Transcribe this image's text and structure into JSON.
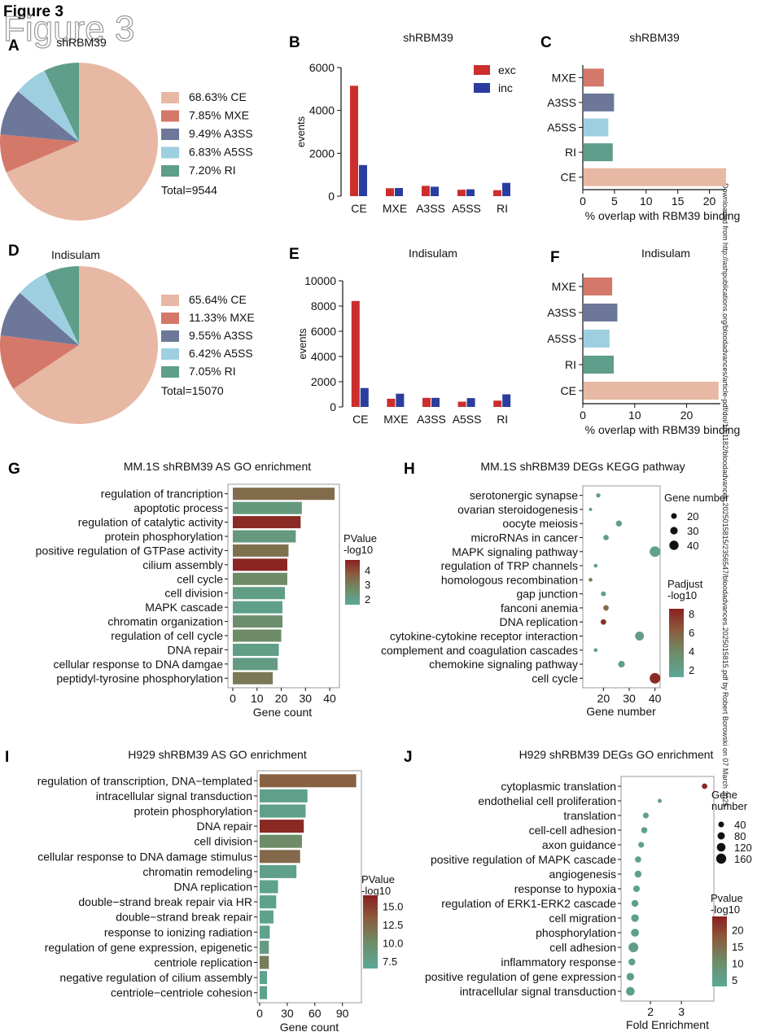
{
  "header": {
    "figure_label": "Figure 3",
    "watermark_title": "Figure 3",
    "side_note": "Downloaded from http://ashpublications.org/bloodadvances/article-pdf/doi/10.1182/bloodadvances.2025015815/2356547/bloodadvances.2025015815.pdf by Robert Borowski on 07 March 2025"
  },
  "palette": {
    "CE": "#e7b8a3",
    "MXE": "#d4786a",
    "A3SS": "#6d7799",
    "A5SS": "#9ecfe0",
    "RI": "#5e9e8a",
    "exc": "#cc2e2e",
    "inc": "#2a3d9e",
    "gradient": [
      "#5aa898",
      "#6e8c68",
      "#8b5a3c",
      "#8a1f1f"
    ]
  },
  "chart_data": [
    {
      "panel": "A",
      "type": "pie",
      "title": "shRBM39",
      "categories": [
        "CE",
        "MXE",
        "A3SS",
        "A5SS",
        "RI"
      ],
      "values": [
        68.63,
        7.85,
        9.49,
        6.83,
        7.2
      ],
      "legend": [
        "68.63%  CE",
        "7.85%  MXE",
        "9.49%  A3SS",
        "6.83%  A5SS",
        "7.20%  RI"
      ],
      "total_label": "Total=9544"
    },
    {
      "panel": "B",
      "type": "bar",
      "title": "shRBM39",
      "categories": [
        "CE",
        "MXE",
        "A3SS",
        "A5SS",
        "RI"
      ],
      "series": [
        {
          "name": "exc",
          "values": [
            5150,
            370,
            480,
            300,
            280
          ]
        },
        {
          "name": "inc",
          "values": [
            1450,
            380,
            440,
            320,
            620
          ]
        }
      ],
      "ylabel": "events",
      "ylim": [
        0,
        6000
      ],
      "yticks": [
        "0",
        "2000",
        "4000",
        "6000"
      ],
      "legend_position": "top-right"
    },
    {
      "panel": "C",
      "type": "bar",
      "orientation": "horizontal",
      "title": "shRBM39",
      "categories": [
        "MXE",
        "A3SS",
        "A5SS",
        "RI",
        "CE"
      ],
      "values": [
        3.2,
        4.8,
        3.9,
        4.6,
        22.5
      ],
      "xlabel": "% overlap with RBM39 binding",
      "xlim": [
        0,
        22.5
      ],
      "xticks": [
        "0",
        "5",
        "10",
        "15",
        "20"
      ]
    },
    {
      "panel": "D",
      "type": "pie",
      "title": "Indisulam",
      "categories": [
        "CE",
        "MXE",
        "A3SS",
        "A5SS",
        "RI"
      ],
      "values": [
        65.64,
        11.33,
        9.55,
        6.42,
        7.05
      ],
      "legend": [
        "65.64%  CE",
        "11.33%  MXE",
        "9.55%  A3SS",
        "6.42%  A5SS",
        "7.05%  RI"
      ],
      "total_label": "Total=15070"
    },
    {
      "panel": "E",
      "type": "bar",
      "title": "Indisulam",
      "categories": [
        "CE",
        "MXE",
        "A3SS",
        "A5SS",
        "RI"
      ],
      "series": [
        {
          "name": "exc",
          "values": [
            8400,
            650,
            720,
            420,
            500
          ]
        },
        {
          "name": "inc",
          "values": [
            1500,
            1050,
            720,
            700,
            1000
          ]
        }
      ],
      "ylabel": "events",
      "ylim": [
        0,
        10000
      ],
      "yticks": [
        "0",
        "2000",
        "4000",
        "6000",
        "8000",
        "10000"
      ]
    },
    {
      "panel": "F",
      "type": "bar",
      "orientation": "horizontal",
      "title": "Indisulam",
      "categories": [
        "MXE",
        "A3SS",
        "A5SS",
        "RI",
        "CE"
      ],
      "values": [
        5.5,
        6.5,
        5.0,
        5.8,
        26.0
      ],
      "xlabel": "% overlap with RBM39 binding",
      "xlim": [
        0,
        26.5
      ],
      "xticks": [
        "0",
        "10",
        "20"
      ]
    },
    {
      "panel": "G",
      "type": "bar",
      "orientation": "horizontal",
      "title": "MM.1S shRBM39 AS GO enrichment",
      "categories": [
        "regulation of trancription",
        "apoptotic process",
        "regulation of catalytic activity",
        "protein phosphorylation",
        "positive regulation of GTPase activity",
        "cilium assembly",
        "cell cycle",
        "cell division",
        "MAPK cascade",
        "chromatin organization",
        "regulation of cell cycle",
        "DNA repair",
        "cellular response to DNA damgae",
        "peptidyl-tyrosine phosphorylation"
      ],
      "values": [
        42,
        28.5,
        28,
        26,
        23,
        22.5,
        22.5,
        21.5,
        20.5,
        20.5,
        20,
        19,
        18.5,
        16.5
      ],
      "color_values": [
        3.4,
        2.2,
        4.5,
        2.2,
        3.3,
        4.6,
        2.7,
        2.0,
        1.9,
        2.6,
        2.7,
        2.0,
        2.1,
        3.1
      ],
      "xlabel": "Gene count",
      "xlim": [
        0,
        43
      ],
      "xticks": [
        "0",
        "10",
        "20",
        "30",
        "40"
      ],
      "colorbar": {
        "title": [
          "PValue",
          "-log10"
        ],
        "ticks": [
          "2",
          "3",
          "4"
        ],
        "range": [
          1.6,
          4.7
        ]
      }
    },
    {
      "panel": "H",
      "type": "scatter",
      "title": "MM.1S shRBM39 DEGs KEGG pathway",
      "categories": [
        "serotonergic synapse",
        "ovarian steroidogenesis",
        "oocyte meiosis",
        "microRNAs in cancer",
        "MAPK signaling pathway",
        "regulation of TRP channels",
        "homologous recombination",
        "gap junction",
        "fanconi anemia",
        "DNA replication",
        "cytokine-cytokine receptor interaction",
        "complement and coagulation cascades",
        "chemokine signaling pathway",
        "cell cycle"
      ],
      "x": [
        18,
        15,
        26,
        21,
        40,
        17,
        15,
        20,
        21,
        20,
        34,
        17,
        27,
        40
      ],
      "size": [
        18,
        14,
        24,
        22,
        40,
        16,
        16,
        20,
        22,
        22,
        34,
        16,
        26,
        40
      ],
      "color_values": [
        2.0,
        2.0,
        2.2,
        2.0,
        1.8,
        2.0,
        4.5,
        2.0,
        5.5,
        7.8,
        2.2,
        2.0,
        2.0,
        8.0
      ],
      "xlabel": "Gene number",
      "xlim": [
        12,
        42
      ],
      "xticks": [
        "20",
        "30",
        "40"
      ],
      "size_legend": {
        "title": "Gene number",
        "labels": [
          "20",
          "30",
          "40"
        ]
      },
      "colorbar": {
        "title": [
          "Padjust",
          "-log10"
        ],
        "ticks": [
          "2",
          "4",
          "6",
          "8"
        ],
        "range": [
          1.2,
          8.5
        ]
      }
    },
    {
      "panel": "I",
      "type": "bar",
      "orientation": "horizontal",
      "title": "H929 shRBM39 AS GO enrichment",
      "categories": [
        "regulation of transcription, DNA−templated",
        "intracellular signal transduction",
        "protein phosphorylation",
        "DNA repair",
        "cell division",
        "cellular response to DNA damage stimulus",
        "chromatin remodeling",
        "DNA replication",
        "double−strand break repair via HR",
        "double−strand break repair",
        "response to ionizing radiation",
        "regulation of gene expression, epigenetic",
        "centriole replication",
        "negative regulation of cilium assembly",
        "centriole−centriole cohesion"
      ],
      "values": [
        105,
        52,
        50,
        48,
        46,
        44,
        40,
        20,
        18,
        15,
        11,
        10,
        10,
        8,
        8
      ],
      "color_values": [
        13.0,
        7.5,
        7.5,
        16.0,
        10.0,
        12.5,
        7.5,
        7.2,
        7.2,
        7.2,
        7.2,
        8.0,
        11.0,
        7.2,
        7.2
      ],
      "xlabel": "Gene count",
      "xlim": [
        0,
        108
      ],
      "xticks": [
        "0",
        "30",
        "60",
        "90"
      ],
      "colorbar": {
        "title": [
          "PValue",
          "-log10"
        ],
        "ticks": [
          "7.5",
          "10.0",
          "12.5",
          "15.0"
        ],
        "range": [
          6.5,
          16.5
        ]
      }
    },
    {
      "panel": "J",
      "type": "scatter",
      "title": "H929 shRBM39 DEGs GO enrichment",
      "categories": [
        "cytoplasmic translation",
        "endothelial cell proliferation",
        "translation",
        "cell-cell adhesion",
        "axon guidance",
        "positive regulation of MAPK cascade",
        "angiogenesis",
        "response to hypoxia",
        "regulation of ERK1-ERK2 cascade",
        "cell migration",
        "phosphorylation",
        "cell adhesion",
        "inflammatory response",
        "positive regulation of gene expression",
        "intracellular signal transduction"
      ],
      "x": [
        3.75,
        2.3,
        1.85,
        1.8,
        1.7,
        1.6,
        1.6,
        1.55,
        1.5,
        1.5,
        1.5,
        1.45,
        1.4,
        1.35,
        1.35
      ],
      "size": [
        40,
        20,
        45,
        50,
        45,
        50,
        60,
        55,
        60,
        70,
        75,
        100,
        60,
        70,
        85
      ],
      "color_values": [
        23,
        5,
        5,
        5,
        5,
        5,
        5,
        5,
        5,
        5,
        5,
        5.5,
        5,
        5,
        5
      ],
      "xlabel": "Fold Enrichment",
      "xlim": [
        1.05,
        4.05
      ],
      "xticks": [
        "2",
        "3"
      ],
      "size_legend": {
        "title": [
          "Gene",
          "number"
        ],
        "labels": [
          "40",
          "80",
          "120",
          "160"
        ]
      },
      "colorbar": {
        "title": [
          "Pvalue",
          "-log10"
        ],
        "ticks": [
          "5",
          "10",
          "15",
          "20"
        ],
        "range": [
          3,
          24
        ]
      }
    }
  ],
  "panel_labels": [
    "A",
    "B",
    "C",
    "D",
    "E",
    "F",
    "G",
    "H",
    "I",
    "J"
  ]
}
